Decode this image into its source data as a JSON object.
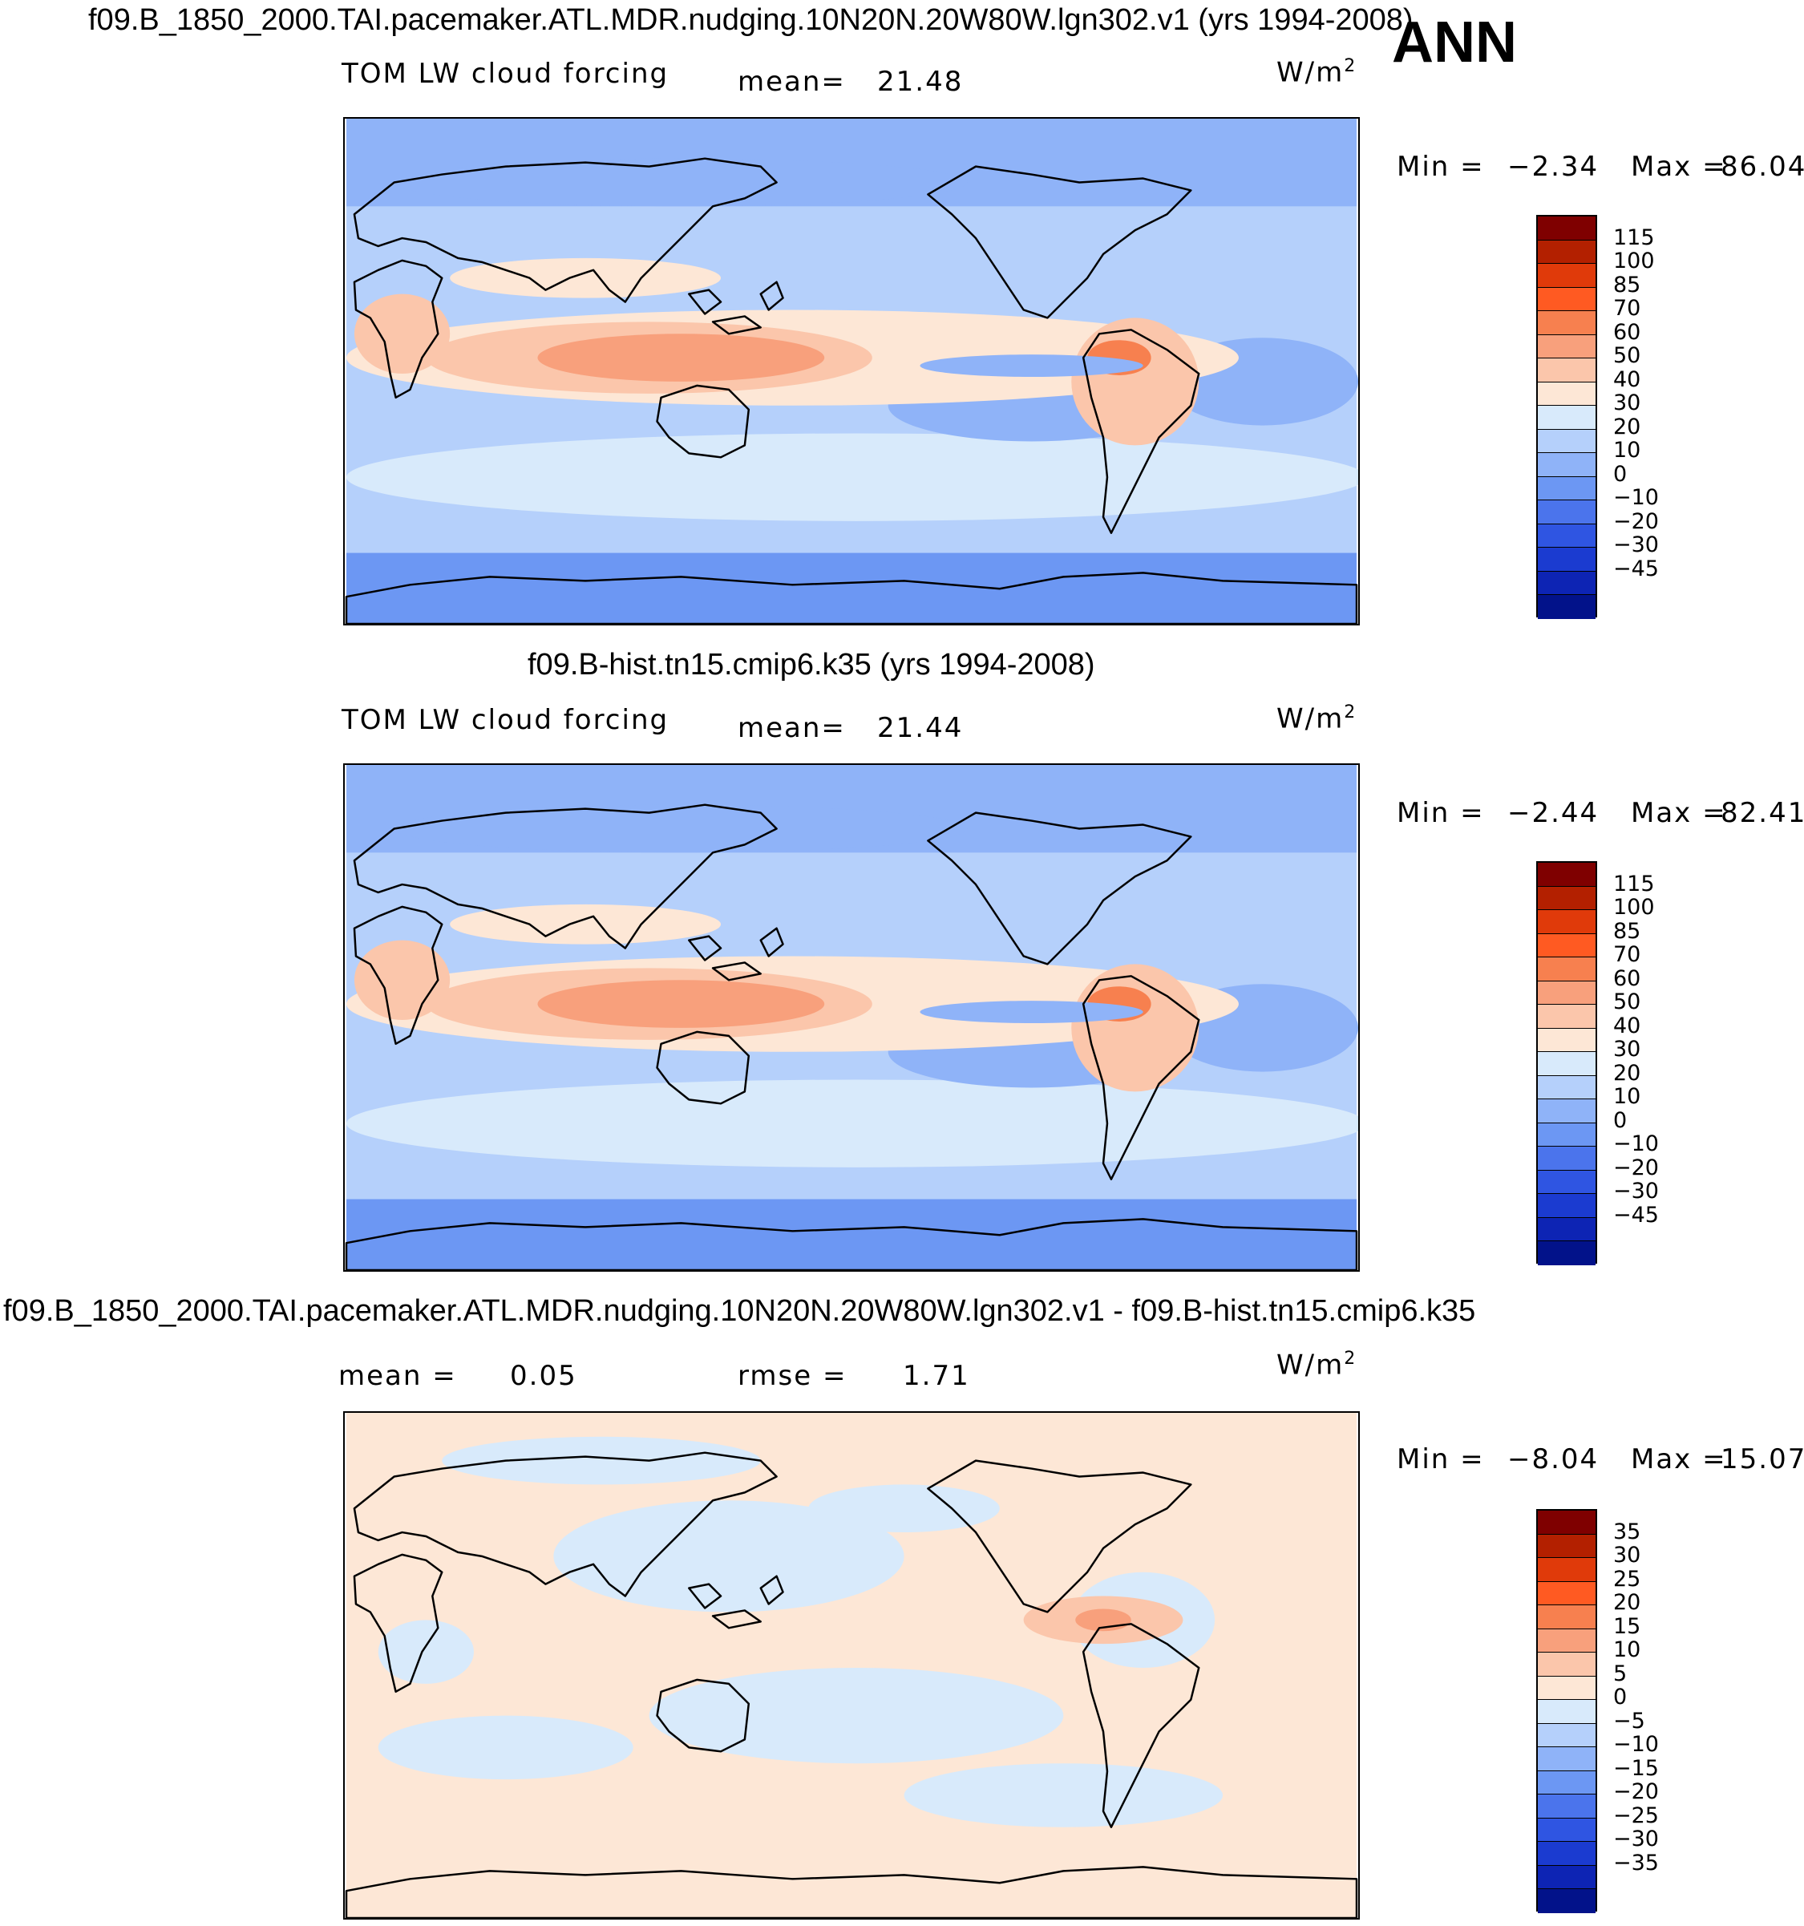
{
  "season": "ANN",
  "units_label": "W/m",
  "units_sup": "2",
  "panels": [
    {
      "title": "f09.B_1850_2000.TAI.pacemaker.ATL.MDR.nudging.10N20N.20W80W.lgn302.v1 (yrs 1994-2008)",
      "left_label": "TOM LW cloud forcing",
      "stat1_label": "mean=",
      "stat1_value": "21.48",
      "min_label": "Min =",
      "min_value": "−2.34",
      "max_label": "Max =",
      "max_value": "86.04"
    },
    {
      "title": "f09.B-hist.tn15.cmip6.k35 (yrs 1994-2008)",
      "left_label": "TOM LW cloud forcing",
      "stat1_label": "mean=",
      "stat1_value": "21.44",
      "min_label": "Min =",
      "min_value": "−2.44",
      "max_label": "Max =",
      "max_value": "82.41"
    },
    {
      "title": "f09.B_1850_2000.TAI.pacemaker.ATL.MDR.nudging.10N20N.20W80W.lgn302.v1 - f09.B-hist.tn15.cmip6.k35",
      "stat1_label": "mean =",
      "stat1_value": "0.05",
      "stat2_label": "rmse =",
      "stat2_value": "1.71",
      "min_label": "Min =",
      "min_value": "−8.04",
      "max_label": "Max =",
      "max_value": "15.07"
    }
  ],
  "chart_data": [
    {
      "type": "heatmap",
      "title": "f09.B_1850_2000.TAI.pacemaker.ATL.MDR.nudging.10N20N.20W80W.lgn302.v1 (yrs 1994-2008)",
      "variable": "TOM LW cloud forcing",
      "units": "W/m2",
      "mean": 21.48,
      "min": -2.34,
      "max": 86.04,
      "contour_levels": [
        "115",
        "100",
        "85",
        "70",
        "60",
        "50",
        "40",
        "30",
        "20",
        "10",
        "0",
        "−10",
        "−20",
        "−30",
        "−45"
      ],
      "colors": [
        "#7f0000",
        "#b32000",
        "#e03a0a",
        "#ff5a22",
        "#f7804f",
        "#f8a07c",
        "#fbc6ab",
        "#fde7d6",
        "#d8eafb",
        "#b5d0fb",
        "#8fb3f8",
        "#6c97f3",
        "#4b74ec",
        "#2f55e2",
        "#1b3bd0",
        "#0d24b4",
        "#02128a"
      ]
    },
    {
      "type": "heatmap",
      "title": "f09.B-hist.tn15.cmip6.k35 (yrs 1994-2008)",
      "variable": "TOM LW cloud forcing",
      "units": "W/m2",
      "mean": 21.44,
      "min": -2.44,
      "max": 82.41,
      "contour_levels": [
        "115",
        "100",
        "85",
        "70",
        "60",
        "50",
        "40",
        "30",
        "20",
        "10",
        "0",
        "−10",
        "−20",
        "−30",
        "−45"
      ],
      "colors": [
        "#7f0000",
        "#b32000",
        "#e03a0a",
        "#ff5a22",
        "#f7804f",
        "#f8a07c",
        "#fbc6ab",
        "#fde7d6",
        "#d8eafb",
        "#b5d0fb",
        "#8fb3f8",
        "#6c97f3",
        "#4b74ec",
        "#2f55e2",
        "#1b3bd0",
        "#0d24b4",
        "#02128a"
      ]
    },
    {
      "type": "heatmap",
      "title": "f09.B_1850_2000.TAI.pacemaker.ATL.MDR.nudging.10N20N.20W80W.lgn302.v1 - f09.B-hist.tn15.cmip6.k35",
      "units": "W/m2",
      "mean": 0.05,
      "rmse": 1.71,
      "min": -8.04,
      "max": 15.07,
      "contour_levels": [
        "35",
        "30",
        "25",
        "20",
        "15",
        "10",
        "5",
        "0",
        "−5",
        "−10",
        "−15",
        "−20",
        "−25",
        "−30",
        "−35"
      ],
      "colors": [
        "#7f0000",
        "#b32000",
        "#e03a0a",
        "#ff5a22",
        "#f7804f",
        "#f8a07c",
        "#fbc6ab",
        "#fde7d6",
        "#d8eafb",
        "#b5d0fb",
        "#8fb3f8",
        "#6c97f3",
        "#4b74ec",
        "#2f55e2",
        "#1b3bd0",
        "#0d24b4",
        "#02128a"
      ]
    }
  ]
}
